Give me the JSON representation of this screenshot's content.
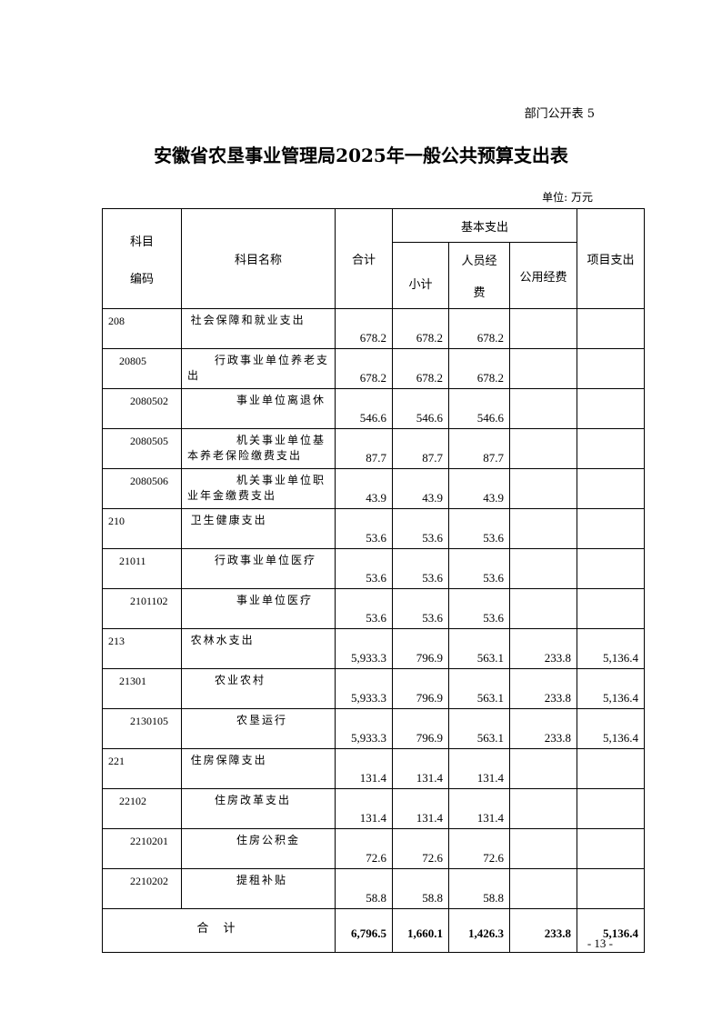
{
  "form_number": "部门公开表 5",
  "title": "安徽省农垦事业管理局2025年一般公共预算支出表",
  "unit": "单位: 万元",
  "headers": {
    "code": "科目编码",
    "code_line1": "科目",
    "code_line2": "编码",
    "name": "科目名称",
    "total": "合计",
    "basic": "基本支出",
    "subtotal": "小计",
    "personnel_line1": "人员经",
    "personnel_line2": "费",
    "public": "公用经费",
    "project": "项目支出"
  },
  "rows": [
    {
      "code": "208",
      "name": "社会保障和就业支出",
      "level": 0,
      "total": "678.2",
      "subtotal": "678.2",
      "personnel": "678.2",
      "public": "",
      "project": ""
    },
    {
      "code": "20805",
      "name": "行政事业单位养老支出",
      "level": 1,
      "total": "678.2",
      "subtotal": "678.2",
      "personnel": "678.2",
      "public": "",
      "project": ""
    },
    {
      "code": "2080502",
      "name": "事业单位离退休",
      "level": 2,
      "total": "546.6",
      "subtotal": "546.6",
      "personnel": "546.6",
      "public": "",
      "project": ""
    },
    {
      "code": "2080505",
      "name": "机关事业单位基本养老保险缴费支出",
      "level": 2,
      "total": "87.7",
      "subtotal": "87.7",
      "personnel": "87.7",
      "public": "",
      "project": ""
    },
    {
      "code": "2080506",
      "name": "机关事业单位职业年金缴费支出",
      "level": 2,
      "total": "43.9",
      "subtotal": "43.9",
      "personnel": "43.9",
      "public": "",
      "project": ""
    },
    {
      "code": "210",
      "name": "卫生健康支出",
      "level": 0,
      "total": "53.6",
      "subtotal": "53.6",
      "personnel": "53.6",
      "public": "",
      "project": ""
    },
    {
      "code": "21011",
      "name": "行政事业单位医疗",
      "level": 1,
      "total": "53.6",
      "subtotal": "53.6",
      "personnel": "53.6",
      "public": "",
      "project": ""
    },
    {
      "code": "2101102",
      "name": "事业单位医疗",
      "level": 2,
      "total": "53.6",
      "subtotal": "53.6",
      "personnel": "53.6",
      "public": "",
      "project": ""
    },
    {
      "code": "213",
      "name": "农林水支出",
      "level": 0,
      "total": "5,933.3",
      "subtotal": "796.9",
      "personnel": "563.1",
      "public": "233.8",
      "project": "5,136.4"
    },
    {
      "code": "21301",
      "name": "农业农村",
      "level": 1,
      "total": "5,933.3",
      "subtotal": "796.9",
      "personnel": "563.1",
      "public": "233.8",
      "project": "5,136.4"
    },
    {
      "code": "2130105",
      "name": "农垦运行",
      "level": 2,
      "total": "5,933.3",
      "subtotal": "796.9",
      "personnel": "563.1",
      "public": "233.8",
      "project": "5,136.4"
    },
    {
      "code": "221",
      "name": "住房保障支出",
      "level": 0,
      "total": "131.4",
      "subtotal": "131.4",
      "personnel": "131.4",
      "public": "",
      "project": ""
    },
    {
      "code": "22102",
      "name": "住房改革支出",
      "level": 1,
      "total": "131.4",
      "subtotal": "131.4",
      "personnel": "131.4",
      "public": "",
      "project": ""
    },
    {
      "code": "2210201",
      "name": "住房公积金",
      "level": 2,
      "total": "72.6",
      "subtotal": "72.6",
      "personnel": "72.6",
      "public": "",
      "project": ""
    },
    {
      "code": "2210202",
      "name": "提租补贴",
      "level": 2,
      "total": "58.8",
      "subtotal": "58.8",
      "personnel": "58.8",
      "public": "",
      "project": ""
    }
  ],
  "total_row": {
    "label": "合 计",
    "total": "6,796.5",
    "subtotal": "1,660.1",
    "personnel": "1,426.3",
    "public": "233.8",
    "project": "5,136.4"
  },
  "page_number": "- 13 -"
}
